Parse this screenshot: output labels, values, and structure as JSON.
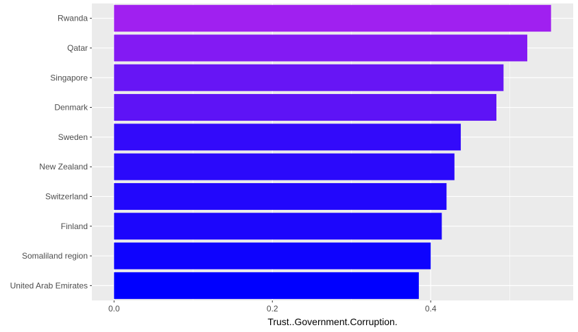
{
  "chart_data": {
    "type": "bar",
    "orientation": "horizontal",
    "categories": [
      "Rwanda",
      "Qatar",
      "Singapore",
      "Denmark",
      "Sweden",
      "New Zealand",
      "Switzerland",
      "Finland",
      "Somaliland region",
      "United Arab Emirates"
    ],
    "values": [
      0.552,
      0.522,
      0.492,
      0.483,
      0.438,
      0.43,
      0.42,
      0.414,
      0.4,
      0.385
    ],
    "title": "",
    "xlabel": "Trust..Government.Corruption.",
    "ylabel": "",
    "xlim": [
      -0.028,
      0.58
    ],
    "xticks": [
      0.0,
      0.2,
      0.4
    ],
    "xtick_labels": [
      "0.0",
      "0.2",
      "0.4"
    ],
    "grid": true,
    "legend": "none",
    "colors": {
      "panel_background": "#ebebeb",
      "grid_major": "#ffffff",
      "gradient_high": "#a020f0",
      "gradient_low": "#0000ff"
    }
  }
}
